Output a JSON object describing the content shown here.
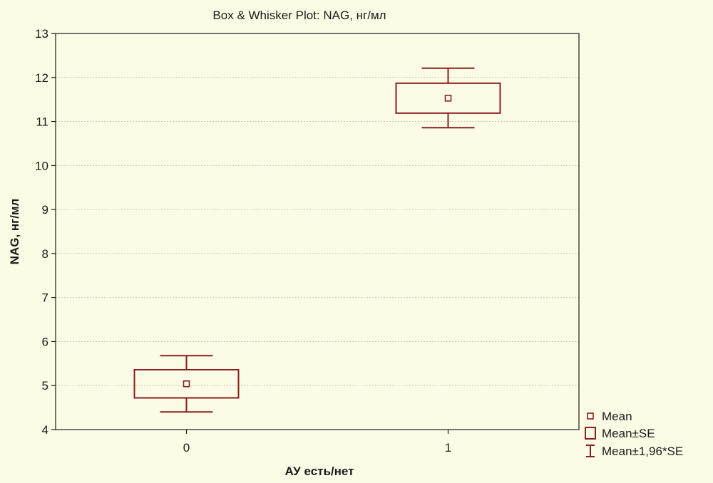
{
  "chart_data": {
    "type": "box",
    "title": "Box & Whisker Plot: NAG, нг/мл",
    "xlabel": "АУ есть/нет",
    "ylabel": "NAG, нг/мл",
    "categories": [
      "0",
      "1"
    ],
    "ylim": [
      4,
      13
    ],
    "yticks": [
      4,
      5,
      6,
      7,
      8,
      9,
      10,
      11,
      12,
      13
    ],
    "grid": true,
    "legend_position": "bottom-right",
    "color": "#8b1e1e",
    "series": [
      {
        "category": "0",
        "mean": 5.04,
        "se_low": 4.72,
        "se_high": 5.36,
        "ci_low": 4.4,
        "ci_high": 5.68
      },
      {
        "category": "1",
        "mean": 11.53,
        "se_low": 11.19,
        "se_high": 11.87,
        "ci_low": 10.86,
        "ci_high": 12.21
      }
    ],
    "legend": [
      {
        "label": "Mean",
        "symbol": "mean"
      },
      {
        "label": "Mean±SE",
        "symbol": "box"
      },
      {
        "label": "Mean±1,96*SE",
        "symbol": "whisker"
      }
    ]
  }
}
